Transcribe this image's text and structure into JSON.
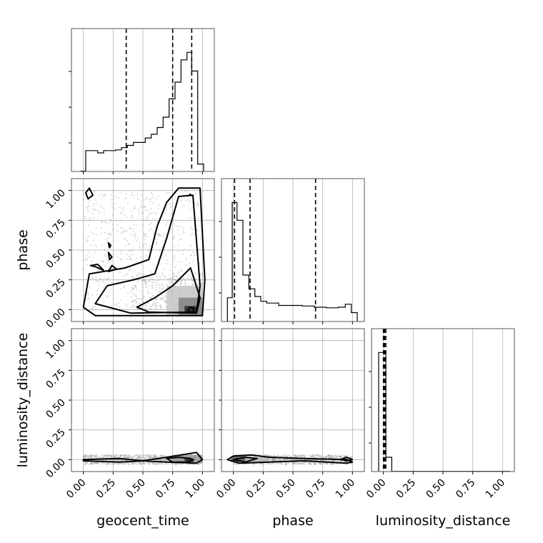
{
  "chart_data": {
    "type": "corner",
    "parameters": [
      "geocent_time",
      "phase",
      "luminosity_distance"
    ],
    "tick_values": [
      0.0,
      0.25,
      0.5,
      0.75,
      1.0
    ],
    "tick_labels": [
      "0.00",
      "0.25",
      "0.50",
      "0.75",
      "1.00"
    ],
    "xlim": [
      -0.1,
      1.1
    ],
    "grid": true,
    "histograms": [
      {
        "parameter": "geocent_time",
        "bin_edges": [
          -0.02,
          0.02,
          0.07,
          0.12,
          0.17,
          0.22,
          0.27,
          0.32,
          0.37,
          0.42,
          0.47,
          0.52,
          0.57,
          0.62,
          0.67,
          0.72,
          0.77,
          0.82,
          0.87,
          0.91,
          0.96,
          1.01
        ],
        "counts": [
          0.01,
          0.56,
          0.56,
          0.5,
          0.56,
          0.56,
          0.58,
          0.64,
          0.7,
          0.78,
          0.78,
          0.9,
          1.0,
          1.18,
          1.46,
          1.95,
          2.4,
          3.0,
          3.2,
          2.7,
          0.2
        ],
        "quantiles": [
          0.36,
          0.75,
          0.91
        ]
      },
      {
        "parameter": "phase",
        "bin_edges": [
          -0.05,
          -0.01,
          0.03,
          0.08,
          0.13,
          0.18,
          0.23,
          0.28,
          0.38,
          0.48,
          0.58,
          0.68,
          0.78,
          0.88,
          0.94,
          0.99,
          1.04
        ],
        "counts": [
          0.4,
          2.0,
          1.7,
          0.78,
          0.55,
          0.42,
          0.34,
          0.31,
          0.27,
          0.27,
          0.26,
          0.24,
          0.23,
          0.24,
          0.29,
          0.15
        ],
        "quantiles": [
          0.01,
          0.14,
          0.69
        ]
      },
      {
        "parameter": "luminosity_distance",
        "bin_edges": [
          -0.04,
          0.0,
          0.02,
          0.07,
          1.06
        ],
        "counts": [
          5.0,
          5.0,
          0.6,
          0.01
        ],
        "quantiles": [
          0.0,
          0.01,
          0.02
        ]
      }
    ],
    "scatter_panels": [
      {
        "x": "geocent_time",
        "y": "phase",
        "contours": [
          [
            [
              0.0,
              0.02
            ],
            [
              0.05,
              0.3
            ],
            [
              0.35,
              0.35
            ],
            [
              0.55,
              0.42
            ],
            [
              0.62,
              0.7
            ],
            [
              0.7,
              0.9
            ],
            [
              0.8,
              1.02
            ],
            [
              0.98,
              1.02
            ],
            [
              1.02,
              0.25
            ],
            [
              1.0,
              -0.05
            ],
            [
              0.1,
              -0.05
            ]
          ],
          [
            [
              0.1,
              0.05
            ],
            [
              0.2,
              0.2
            ],
            [
              0.42,
              0.25
            ],
            [
              0.6,
              0.3
            ],
            [
              0.7,
              0.6
            ],
            [
              0.8,
              0.95
            ],
            [
              0.92,
              0.96
            ],
            [
              0.98,
              0.2
            ],
            [
              0.95,
              -0.02
            ],
            [
              0.4,
              -0.03
            ]
          ],
          [
            [
              0.45,
              0.02
            ],
            [
              0.6,
              0.1
            ],
            [
              0.75,
              0.2
            ],
            [
              0.9,
              0.35
            ],
            [
              0.98,
              0.1
            ],
            [
              0.95,
              -0.03
            ],
            [
              0.55,
              -0.02
            ]
          ],
          [
            [
              0.88,
              0.0
            ],
            [
              0.9,
              0.02
            ],
            [
              0.93,
              0.01
            ],
            [
              0.92,
              -0.02
            ],
            [
              0.89,
              -0.02
            ]
          ],
          [
            [
              0.02,
              0.98
            ],
            [
              0.05,
              1.02
            ],
            [
              0.08,
              0.96
            ],
            [
              0.04,
              0.93
            ]
          ],
          [
            [
              0.06,
              0.37
            ],
            [
              0.12,
              0.38
            ],
            [
              0.17,
              0.33
            ],
            [
              0.1,
              0.36
            ]
          ],
          [
            [
              0.21,
              0.32
            ],
            [
              0.24,
              0.37
            ],
            [
              0.28,
              0.34
            ]
          ],
          [
            [
              0.21,
              0.56
            ],
            [
              0.23,
              0.54
            ],
            [
              0.22,
              0.52
            ]
          ],
          [
            [
              0.21,
              0.48
            ],
            [
              0.24,
              0.44
            ],
            [
              0.22,
              0.42
            ]
          ],
          [
            [
              0.89,
              0.97
            ],
            [
              0.91,
              0.96
            ]
          ]
        ],
        "density": [
          {
            "x": [
              0.7,
              1.0
            ],
            "y": [
              -0.05,
              0.2
            ],
            "level": 0.25
          },
          {
            "x": [
              0.8,
              1.0
            ],
            "y": [
              -0.05,
              0.1
            ],
            "level": 0.55
          },
          {
            "x": [
              0.85,
              0.95
            ],
            "y": [
              -0.02,
              0.03
            ],
            "level": 0.95
          }
        ]
      },
      {
        "x": "geocent_time",
        "y": "luminosity_distance",
        "contours": [
          [
            [
              0.0,
              0.0
            ],
            [
              0.3,
              0.01
            ],
            [
              0.5,
              -0.01
            ],
            [
              0.7,
              0.02
            ],
            [
              0.95,
              0.06
            ],
            [
              1.0,
              0.0
            ],
            [
              0.95,
              -0.03
            ],
            [
              0.7,
              -0.02
            ],
            [
              0.5,
              -0.01
            ],
            [
              0.3,
              -0.02
            ],
            [
              0.0,
              -0.01
            ]
          ],
          [
            [
              0.7,
              0.01
            ],
            [
              0.8,
              0.02
            ],
            [
              0.9,
              0.01
            ],
            [
              0.92,
              -0.01
            ],
            [
              0.85,
              -0.02
            ],
            [
              0.75,
              -0.02
            ]
          ]
        ],
        "density": [
          {
            "x": [
              0.75,
              1.0
            ],
            "y": [
              -0.03,
              0.04
            ],
            "level": 0.45
          },
          {
            "x": [
              0.85,
              0.93
            ],
            "y": [
              -0.01,
              0.01
            ],
            "level": 0.95
          }
        ]
      },
      {
        "x": "phase",
        "y": "luminosity_distance",
        "contours": [
          [
            [
              -0.05,
              0.0
            ],
            [
              0.0,
              0.03
            ],
            [
              0.15,
              0.04
            ],
            [
              0.3,
              0.02
            ],
            [
              0.6,
              0.01
            ],
            [
              0.95,
              0.0
            ],
            [
              1.0,
              -0.02
            ],
            [
              0.95,
              -0.03
            ],
            [
              0.6,
              -0.01
            ],
            [
              0.3,
              -0.02
            ],
            [
              0.05,
              -0.03
            ]
          ],
          [
            [
              0.0,
              0.0
            ],
            [
              0.1,
              0.02
            ],
            [
              0.2,
              0.01
            ],
            [
              0.1,
              -0.02
            ]
          ],
          [
            [
              0.9,
              0.0
            ],
            [
              0.95,
              0.02
            ],
            [
              1.0,
              0.0
            ],
            [
              0.95,
              -0.01
            ]
          ]
        ],
        "density": [
          {
            "x": [
              -0.02,
              0.1
            ],
            "y": [
              -0.02,
              0.03
            ],
            "level": 0.75
          },
          {
            "x": [
              0.1,
              0.3
            ],
            "y": [
              -0.02,
              0.02
            ],
            "level": 0.3
          }
        ]
      }
    ]
  }
}
